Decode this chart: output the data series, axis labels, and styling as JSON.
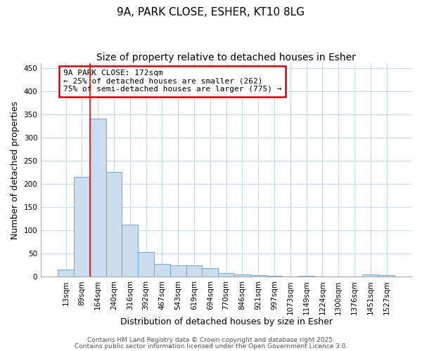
{
  "title_line1": "9A, PARK CLOSE, ESHER, KT10 8LG",
  "title_line2": "Size of property relative to detached houses in Esher",
  "xlabel": "Distribution of detached houses by size in Esher",
  "ylabel": "Number of detached properties",
  "categories": [
    "13sqm",
    "89sqm",
    "164sqm",
    "240sqm",
    "316sqm",
    "392sqm",
    "467sqm",
    "543sqm",
    "619sqm",
    "694sqm",
    "770sqm",
    "846sqm",
    "921sqm",
    "997sqm",
    "1073sqm",
    "1149sqm",
    "1224sqm",
    "1300sqm",
    "1376sqm",
    "1451sqm",
    "1527sqm"
  ],
  "values": [
    15,
    215,
    340,
    225,
    113,
    54,
    27,
    25,
    25,
    18,
    8,
    5,
    4,
    2,
    0,
    2,
    1,
    0,
    0,
    5,
    4
  ],
  "bar_color": "#ccddf0",
  "bar_edge_color": "#7aadd4",
  "red_line_x": 1.5,
  "annotation_text": "9A PARK CLOSE: 172sqm\n← 25% of detached houses are smaller (262)\n75% of semi-detached houses are larger (775) →",
  "annotation_box_color": "#ffffff",
  "annotation_box_edge_color": "#cc0000",
  "ylim": [
    0,
    460
  ],
  "yticks": [
    0,
    50,
    100,
    150,
    200,
    250,
    300,
    350,
    400,
    450
  ],
  "footer_line1": "Contains HM Land Registry data © Crown copyright and database right 2025.",
  "footer_line2": "Contains public sector information licensed under the Open Government Licence 3.0.",
  "background_color": "#ffffff",
  "grid_color": "#c8d8e8",
  "title_fontsize": 11,
  "subtitle_fontsize": 10,
  "tick_fontsize": 7.5,
  "axis_label_fontsize": 9,
  "footer_fontsize": 6.5
}
